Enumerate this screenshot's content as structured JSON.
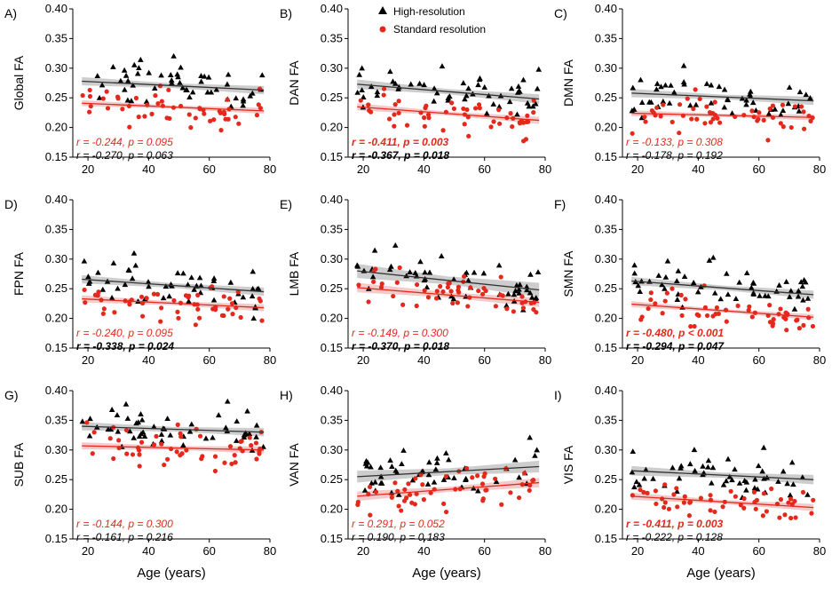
{
  "figure": {
    "legend": {
      "high_label": "High-resolution",
      "std_label": "Standard resolution"
    },
    "colors": {
      "high": "#000000",
      "std": "#e4291c",
      "high_band": "#c4c4c4",
      "std_band": "#f2c2c2"
    }
  },
  "chart_data": [
    {
      "id": "A",
      "panel_label": "A)",
      "type": "scatter",
      "ylabel": "Global FA",
      "xlabel": "",
      "xlim": [
        15,
        80
      ],
      "ylim": [
        0.15,
        0.4
      ],
      "xticks": [
        "20",
        "40",
        "60",
        "80"
      ],
      "yticks": [
        "0.15",
        "0.20",
        "0.25",
        "0.30",
        "0.35",
        "0.40"
      ],
      "series": [
        {
          "name": "High-resolution",
          "marker": "triangle",
          "fit": [
            0.278,
            0.263
          ],
          "band": 0.007
        },
        {
          "name": "Standard resolution",
          "marker": "circle",
          "fit": [
            0.241,
            0.228
          ],
          "band": 0.005
        }
      ],
      "stats": [
        {
          "label": "r = -0.244, p = 0.095",
          "color": "std",
          "bold": false
        },
        {
          "label": "r = -0.270, p = 0.063",
          "color": "high",
          "bold": false
        }
      ]
    },
    {
      "id": "B",
      "panel_label": "B)",
      "type": "scatter",
      "ylabel": "DAN FA",
      "xlabel": "",
      "xlim": [
        15,
        80
      ],
      "ylim": [
        0.15,
        0.4
      ],
      "xticks": [
        "20",
        "40",
        "60",
        "80"
      ],
      "yticks": [
        "0.15",
        "0.20",
        "0.25",
        "0.30",
        "0.35",
        "0.40"
      ],
      "series": [
        {
          "name": "High-resolution",
          "marker": "triangle",
          "fit": [
            0.273,
            0.248
          ],
          "band": 0.008
        },
        {
          "name": "Standard resolution",
          "marker": "circle",
          "fit": [
            0.235,
            0.212
          ],
          "band": 0.006
        }
      ],
      "stats": [
        {
          "label": "r = -0.411, p = 0.003",
          "color": "std",
          "bold": true
        },
        {
          "label": "r = -0.367, p = 0.018",
          "color": "high",
          "bold": true
        }
      ]
    },
    {
      "id": "C",
      "panel_label": "C)",
      "type": "scatter",
      "ylabel": "DMN FA",
      "xlabel": "",
      "xlim": [
        15,
        80
      ],
      "ylim": [
        0.15,
        0.4
      ],
      "xticks": [
        "20",
        "40",
        "60",
        "80"
      ],
      "yticks": [
        "0.15",
        "0.20",
        "0.25",
        "0.30",
        "0.35",
        "0.40"
      ],
      "series": [
        {
          "name": "High-resolution",
          "marker": "triangle",
          "fit": [
            0.258,
            0.245
          ],
          "band": 0.007
        },
        {
          "name": "Standard resolution",
          "marker": "circle",
          "fit": [
            0.224,
            0.217
          ],
          "band": 0.005
        }
      ],
      "stats": [
        {
          "label": "r = -0.133, p = 0.308",
          "color": "std",
          "bold": false
        },
        {
          "label": "r = -0.178, p = 0.192",
          "color": "high",
          "bold": false
        }
      ]
    },
    {
      "id": "D",
      "panel_label": "D)",
      "type": "scatter",
      "ylabel": "FPN FA",
      "xlabel": "",
      "xlim": [
        15,
        80
      ],
      "ylim": [
        0.15,
        0.4
      ],
      "xticks": [
        "20",
        "40",
        "60",
        "80"
      ],
      "yticks": [
        "0.15",
        "0.20",
        "0.25",
        "0.30",
        "0.35",
        "0.40"
      ],
      "series": [
        {
          "name": "High-resolution",
          "marker": "triangle",
          "fit": [
            0.266,
            0.245
          ],
          "band": 0.007
        },
        {
          "name": "Standard resolution",
          "marker": "circle",
          "fit": [
            0.233,
            0.218
          ],
          "band": 0.006
        }
      ],
      "stats": [
        {
          "label": "r = -0.240, p = 0.095",
          "color": "std",
          "bold": false
        },
        {
          "label": "r = -0.338, p = 0.024",
          "color": "high",
          "bold": true
        }
      ]
    },
    {
      "id": "E",
      "panel_label": "E)",
      "type": "scatter",
      "ylabel": "LMB FA",
      "xlabel": "",
      "xlim": [
        15,
        80
      ],
      "ylim": [
        0.15,
        0.4
      ],
      "xticks": [
        "20",
        "40",
        "60",
        "80"
      ],
      "yticks": [
        "0.15",
        "0.20",
        "0.25",
        "0.30",
        "0.35",
        "0.40"
      ],
      "series": [
        {
          "name": "High-resolution",
          "marker": "triangle",
          "fit": [
            0.28,
            0.248
          ],
          "band": 0.012
        },
        {
          "name": "Standard resolution",
          "marker": "circle",
          "fit": [
            0.252,
            0.227
          ],
          "band": 0.008
        }
      ],
      "stats": [
        {
          "label": "r = -0.149, p = 0.300",
          "color": "std",
          "bold": false
        },
        {
          "label": "r = -0.370, p = 0.018",
          "color": "high",
          "bold": true
        }
      ]
    },
    {
      "id": "F",
      "panel_label": "F)",
      "type": "scatter",
      "ylabel": "SMN FA",
      "xlabel": "",
      "xlim": [
        15,
        80
      ],
      "ylim": [
        0.15,
        0.4
      ],
      "xticks": [
        "20",
        "40",
        "60",
        "80"
      ],
      "yticks": [
        "0.15",
        "0.20",
        "0.25",
        "0.30",
        "0.35",
        "0.40"
      ],
      "series": [
        {
          "name": "High-resolution",
          "marker": "triangle",
          "fit": [
            0.263,
            0.24
          ],
          "band": 0.007
        },
        {
          "name": "Standard resolution",
          "marker": "circle",
          "fit": [
            0.224,
            0.202
          ],
          "band": 0.005
        }
      ],
      "stats": [
        {
          "label": "r = -0.480, p < 0.001",
          "color": "std",
          "bold": true
        },
        {
          "label": "r = -0.294, p = 0.047",
          "color": "high",
          "bold": true
        }
      ]
    },
    {
      "id": "G",
      "panel_label": "G)",
      "type": "scatter",
      "ylabel": "SUB FA",
      "xlabel": "Age (years)",
      "xlim": [
        15,
        80
      ],
      "ylim": [
        0.15,
        0.4
      ],
      "xticks": [
        "20",
        "40",
        "60",
        "80"
      ],
      "yticks": [
        "0.15",
        "0.20",
        "0.25",
        "0.30",
        "0.35",
        "0.40"
      ],
      "series": [
        {
          "name": "High-resolution",
          "marker": "triangle",
          "fit": [
            0.34,
            0.33
          ],
          "band": 0.007
        },
        {
          "name": "Standard resolution",
          "marker": "circle",
          "fit": [
            0.307,
            0.3
          ],
          "band": 0.006
        }
      ],
      "stats": [
        {
          "label": "r = -0.144, p = 0.300",
          "color": "std",
          "bold": false
        },
        {
          "label": "r = -0.161, p = 0.216",
          "color": "high",
          "bold": false
        }
      ]
    },
    {
      "id": "H",
      "panel_label": "H)",
      "type": "scatter",
      "ylabel": "VAN FA",
      "xlabel": "Age (years)",
      "xlim": [
        15,
        80
      ],
      "ylim": [
        0.15,
        0.4
      ],
      "xticks": [
        "20",
        "40",
        "60",
        "80"
      ],
      "yticks": [
        "0.15",
        "0.20",
        "0.25",
        "0.30",
        "0.35",
        "0.40"
      ],
      "series": [
        {
          "name": "High-resolution",
          "marker": "triangle",
          "fit": [
            0.255,
            0.272
          ],
          "band": 0.01
        },
        {
          "name": "Standard resolution",
          "marker": "circle",
          "fit": [
            0.222,
            0.245
          ],
          "band": 0.008
        }
      ],
      "stats": [
        {
          "label": "r = 0.291, p = 0.052",
          "color": "std",
          "bold": false
        },
        {
          "label": "r = 0.190, p = 0.183",
          "color": "high",
          "bold": false
        }
      ]
    },
    {
      "id": "I",
      "panel_label": "I)",
      "type": "scatter",
      "ylabel": "VIS FA",
      "xlabel": "Age (years)",
      "xlim": [
        15,
        80
      ],
      "ylim": [
        0.15,
        0.4
      ],
      "xticks": [
        "20",
        "40",
        "60",
        "80"
      ],
      "yticks": [
        "0.15",
        "0.20",
        "0.25",
        "0.30",
        "0.35",
        "0.40"
      ],
      "series": [
        {
          "name": "High-resolution",
          "marker": "triangle",
          "fit": [
            0.265,
            0.25
          ],
          "band": 0.008
        },
        {
          "name": "Standard resolution",
          "marker": "circle",
          "fit": [
            0.222,
            0.203
          ],
          "band": 0.006
        }
      ],
      "stats": [
        {
          "label": "r = -0.411, p = 0.003",
          "color": "std",
          "bold": true
        },
        {
          "label": "r = -0.222, p = 0.128",
          "color": "high",
          "bold": false
        }
      ]
    }
  ]
}
